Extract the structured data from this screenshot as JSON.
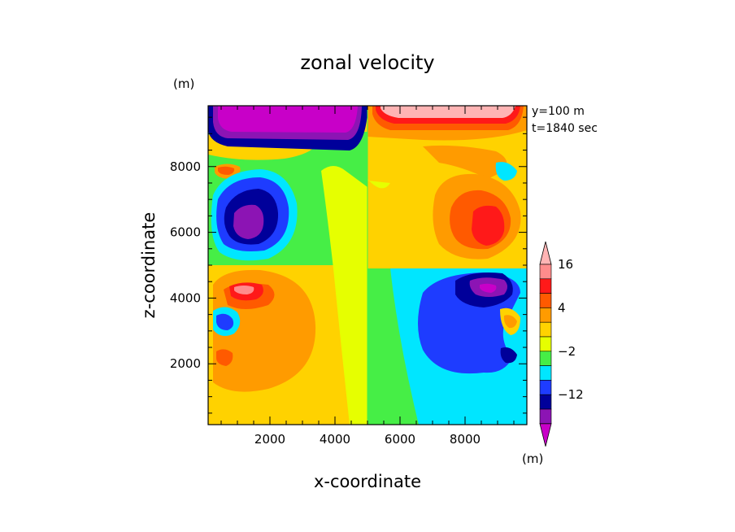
{
  "chart_data": {
    "type": "heatmap",
    "title": "zonal velocity",
    "xlabel": "x-coordinate",
    "ylabel": "z-coordinate",
    "x_unit": "(m)",
    "y_unit": "(m)",
    "colorbar_unit": "(m)",
    "annotations": [
      "y=100 m",
      "t=1840 sec"
    ],
    "xlim": [
      100,
      9900
    ],
    "ylim": [
      150,
      9850
    ],
    "x_ticks": [
      2000,
      4000,
      6000,
      8000
    ],
    "x_tick_labels": [
      "2000",
      "4000",
      "6000",
      "8000"
    ],
    "y_ticks": [
      2000,
      4000,
      6000,
      8000
    ],
    "y_tick_labels": [
      "2000",
      "4000",
      "6000",
      "8000"
    ],
    "colorbar": {
      "levels": [
        -20,
        -16,
        -12,
        -8,
        -4,
        -2,
        0,
        2,
        4,
        8,
        12,
        16,
        20
      ],
      "labeled_levels": [
        16,
        4,
        -2,
        -12
      ],
      "labels": [
        "16",
        "4",
        "−2",
        "−12"
      ],
      "colors": [
        "#c800c8",
        "#8c14b4",
        "#00009a",
        "#1e3cff",
        "#00e6ff",
        "#46ee46",
        "#e6ff00",
        "#ffd200",
        "#ff9b00",
        "#ff5a00",
        "#ff1919",
        "#ff8c8c",
        "#ffb4b4"
      ]
    },
    "features": [
      {
        "kind": "background",
        "x": [
          100,
          5000
        ],
        "z": [
          150,
          4900
        ],
        "value": 1
      },
      {
        "kind": "background",
        "x": [
          5000,
          9900
        ],
        "z": [
          150,
          4900
        ],
        "value": -1
      },
      {
        "kind": "cell",
        "x": 1300,
        "z": 6300,
        "peak": -18,
        "note": "left negative core"
      },
      {
        "kind": "cell",
        "x": 8700,
        "z": 6250,
        "peak": 14,
        "note": "right positive core"
      },
      {
        "kind": "cell",
        "x": 2200,
        "z": 2900,
        "peak": 7,
        "note": "lower-left positive lobe"
      },
      {
        "kind": "cell",
        "x": 7900,
        "z": 3000,
        "peak": -9,
        "note": "lower-right negative lobe"
      },
      {
        "kind": "cell",
        "x": 1200,
        "z": 4100,
        "peak": 18,
        "note": "left positive jet"
      },
      {
        "kind": "cell",
        "x": 8700,
        "z": 4150,
        "peak": -18,
        "note": "right negative jet"
      },
      {
        "kind": "cell",
        "x": 2800,
        "z": 9500,
        "peak": -20,
        "note": "top-left band"
      },
      {
        "kind": "cell",
        "x": 7400,
        "z": 9500,
        "peak": 20,
        "note": "top-right band"
      }
    ]
  }
}
